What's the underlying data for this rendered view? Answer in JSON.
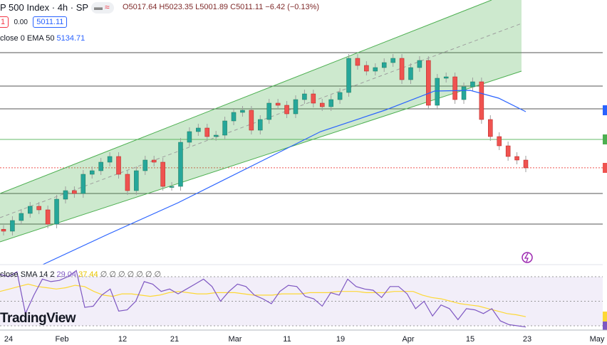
{
  "header": {
    "symbol": "P 500 Index · 4h · SP",
    "open": "O5017.64",
    "high": "H5023.35",
    "low": "L5001.89",
    "close": "C5011.11",
    "change": "−6.42 (−0.13%)",
    "sell_fragment": "1",
    "spread": "0.00",
    "buy": "5011.11",
    "ema_label": "close 0 EMA 50",
    "ema_value": "5134.71"
  },
  "rsi_legend": {
    "label": "close SMA 14 2",
    "rsi": "29.04",
    "sma": "37.44",
    "extra": "∅ ∅ ∅ ∅ ∅ ∅ ∅"
  },
  "logo": "TradingView",
  "colors": {
    "up": "#26a69a",
    "down": "#ef5350",
    "channel": "#4caf50",
    "ema": "#2962ff",
    "rsi": "#7e57c2",
    "rsi_sma": "#fdd835"
  },
  "chart_data": {
    "type": "candlestick",
    "x_ticks": [
      "24",
      "Feb",
      "12",
      "21",
      "Mar",
      "11",
      "19",
      "Apr",
      "15",
      "23",
      "May"
    ],
    "closes": [
      4877.5,
      4900,
      4915,
      4930,
      4922.5,
      4892.5,
      4945,
      4963,
      4957,
      4997.5,
      5005,
      5023,
      5035,
      4997.5,
      4963,
      5005,
      5027.5,
      5023,
      4972,
      4972,
      5065,
      5087.5,
      5095,
      5077,
      5080,
      5110,
      5128,
      5132.5,
      5090.5,
      5113,
      5147.5,
      5143,
      5125,
      5155,
      5167,
      5147.5,
      5140,
      5155,
      5170,
      5242,
      5227,
      5215,
      5222.5,
      5233,
      5242,
      5197,
      5222.5,
      5237.5,
      5143,
      5200,
      5203,
      5155,
      5182,
      5192.5,
      5113,
      5077,
      5057.5,
      5035,
      5027.5,
      5011
    ],
    "last_price": 5011.11,
    "ema50_last": 5134.71,
    "rsi": [
      72,
      70,
      74,
      40,
      55,
      68,
      66,
      67,
      70,
      75,
      45,
      46,
      55,
      60,
      42,
      43,
      50,
      66,
      64,
      58,
      60,
      56,
      60,
      64,
      68,
      62,
      50,
      58,
      64,
      62,
      55,
      52,
      48,
      58,
      63,
      62,
      54,
      52,
      46,
      57,
      55,
      68,
      62,
      60,
      59,
      53,
      62,
      62,
      56,
      44,
      50,
      38,
      47,
      44,
      35,
      44,
      43,
      40,
      44,
      34,
      31,
      30,
      29.04
    ],
    "rsi_sma": [
      58,
      60,
      62,
      64,
      62,
      61,
      60,
      61,
      63,
      62,
      58,
      55,
      54,
      56,
      56,
      55,
      54,
      55,
      57,
      58,
      57,
      56,
      56,
      57,
      57,
      57,
      56,
      55,
      55,
      55,
      56,
      56,
      56,
      57,
      57,
      57,
      58,
      58,
      58,
      57,
      57,
      57,
      58,
      58,
      58,
      55,
      53,
      52,
      50,
      48,
      47,
      46,
      44,
      42,
      40,
      39,
      37.44
    ],
    "rsi_levels": [
      70,
      50,
      30
    ]
  }
}
